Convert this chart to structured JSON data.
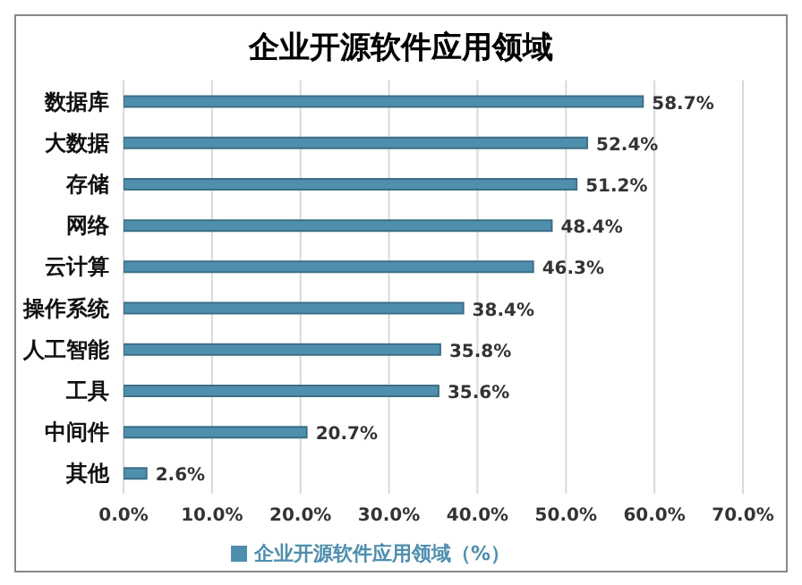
{
  "chart_data": {
    "type": "bar",
    "orientation": "horizontal",
    "title": "企业开源软件应用领域",
    "categories": [
      "数据库",
      "大数据",
      "存储",
      "网络",
      "云计算",
      "操作系统",
      "人工智能",
      "工具",
      "中间件",
      "其他"
    ],
    "series": [
      {
        "name": "企业开源软件应用领域（%）",
        "color": "#4f8fae",
        "values": [
          58.7,
          52.4,
          51.2,
          48.4,
          46.3,
          38.4,
          35.8,
          35.6,
          20.7,
          2.6
        ],
        "value_labels": [
          "58.7%",
          "52.4%",
          "51.2%",
          "48.4%",
          "46.3%",
          "38.4%",
          "35.8%",
          "35.6%",
          "20.7%",
          "2.6%"
        ]
      }
    ],
    "xlim": [
      0,
      70
    ],
    "xticks": [
      {
        "value": 0,
        "label": "0.0%"
      },
      {
        "value": 10,
        "label": "10.0%"
      },
      {
        "value": 20,
        "label": "20.0%"
      },
      {
        "value": 30,
        "label": "30.0%"
      },
      {
        "value": 40,
        "label": "40.0%"
      },
      {
        "value": 50,
        "label": "50.0%"
      },
      {
        "value": 60,
        "label": "60.0%"
      },
      {
        "value": 70,
        "label": "70.0%"
      }
    ],
    "grid": "x",
    "legend": "bottom"
  }
}
